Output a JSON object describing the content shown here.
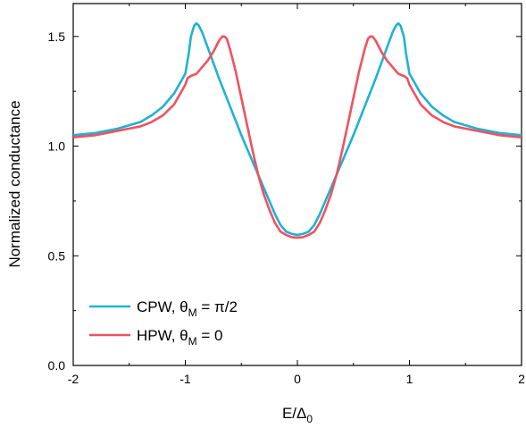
{
  "chart_data": {
    "type": "line",
    "xlabel_main": "E/Δ",
    "xlabel_sub": "0",
    "ylabel": "Normalized conductance",
    "xlim": [
      -2,
      2
    ],
    "ylim": [
      0,
      1.65
    ],
    "x_ticks": [
      -2,
      -1,
      0,
      1,
      2
    ],
    "x_tick_labels": [
      "-2",
      "-1",
      "0",
      "1",
      "2"
    ],
    "y_ticks": [
      0,
      0.5,
      1.0,
      1.5
    ],
    "y_tick_labels": [
      "0.0",
      "0.5",
      "1.0",
      "1.5"
    ],
    "grid": false,
    "legend_position": "bottom-left",
    "series": [
      {
        "name_main": "CPW, θ",
        "name_sub": "M",
        "name_tail": " = π/2",
        "color": "#1fb2d2",
        "x": [
          -2.0,
          -1.8,
          -1.6,
          -1.4,
          -1.3,
          -1.2,
          -1.1,
          -1.0,
          -0.97,
          -0.95,
          -0.92,
          -0.9,
          -0.88,
          -0.85,
          -0.8,
          -0.75,
          -0.7,
          -0.6,
          -0.5,
          -0.4,
          -0.3,
          -0.25,
          -0.2,
          -0.15,
          -0.1,
          -0.05,
          0.0,
          0.05,
          0.1,
          0.15,
          0.2,
          0.25,
          0.3,
          0.4,
          0.5,
          0.6,
          0.7,
          0.75,
          0.8,
          0.85,
          0.88,
          0.9,
          0.92,
          0.95,
          0.97,
          1.0,
          1.1,
          1.2,
          1.3,
          1.4,
          1.6,
          1.8,
          2.0
        ],
        "y": [
          1.05,
          1.06,
          1.08,
          1.11,
          1.14,
          1.18,
          1.24,
          1.33,
          1.42,
          1.5,
          1.55,
          1.56,
          1.55,
          1.52,
          1.45,
          1.38,
          1.31,
          1.18,
          1.05,
          0.93,
          0.81,
          0.75,
          0.69,
          0.64,
          0.61,
          0.6,
          0.595,
          0.6,
          0.61,
          0.64,
          0.69,
          0.75,
          0.81,
          0.93,
          1.05,
          1.18,
          1.31,
          1.38,
          1.45,
          1.52,
          1.55,
          1.56,
          1.55,
          1.5,
          1.42,
          1.33,
          1.24,
          1.18,
          1.14,
          1.11,
          1.08,
          1.06,
          1.05
        ]
      },
      {
        "name_main": "HPW, θ",
        "name_sub": "M",
        "name_tail": " = 0",
        "color": "#f0525e",
        "x": [
          -2.0,
          -1.8,
          -1.6,
          -1.4,
          -1.3,
          -1.2,
          -1.1,
          -1.0,
          -0.98,
          -0.95,
          -0.9,
          -0.85,
          -0.8,
          -0.75,
          -0.7,
          -0.67,
          -0.65,
          -0.63,
          -0.6,
          -0.55,
          -0.5,
          -0.45,
          -0.4,
          -0.35,
          -0.3,
          -0.25,
          -0.2,
          -0.15,
          -0.1,
          -0.05,
          0.0,
          0.05,
          0.1,
          0.15,
          0.2,
          0.25,
          0.3,
          0.35,
          0.4,
          0.45,
          0.5,
          0.55,
          0.6,
          0.63,
          0.65,
          0.67,
          0.7,
          0.75,
          0.8,
          0.85,
          0.9,
          0.95,
          0.98,
          1.0,
          1.1,
          1.2,
          1.3,
          1.4,
          1.6,
          1.8,
          2.0
        ],
        "y": [
          1.04,
          1.05,
          1.07,
          1.09,
          1.11,
          1.14,
          1.19,
          1.28,
          1.31,
          1.32,
          1.33,
          1.36,
          1.39,
          1.43,
          1.48,
          1.5,
          1.5,
          1.49,
          1.44,
          1.34,
          1.22,
          1.1,
          0.98,
          0.87,
          0.78,
          0.71,
          0.65,
          0.61,
          0.595,
          0.585,
          0.583,
          0.585,
          0.595,
          0.61,
          0.65,
          0.71,
          0.78,
          0.87,
          0.98,
          1.1,
          1.22,
          1.34,
          1.44,
          1.49,
          1.5,
          1.5,
          1.48,
          1.43,
          1.39,
          1.36,
          1.33,
          1.32,
          1.31,
          1.28,
          1.19,
          1.14,
          1.11,
          1.09,
          1.07,
          1.05,
          1.04
        ]
      }
    ]
  }
}
